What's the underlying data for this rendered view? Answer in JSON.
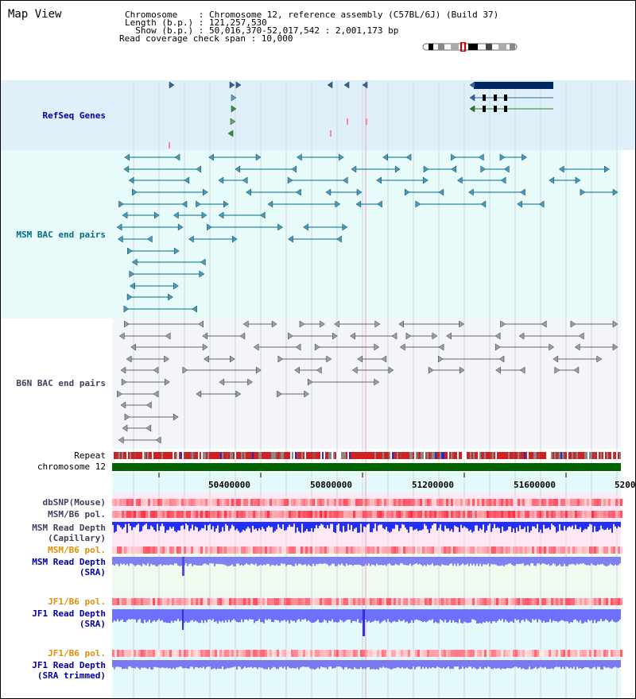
{
  "title": "Map View",
  "header": {
    "line1": "Chromosome    : Chromosome 12, reference assembly (C57BL/6J) (Build 37)",
    "line2": "Length (b.p.) : 121,257,530",
    "line3": "  Show (b.p.) : 50,016,370-52,017,542 : 2,001,173 bp",
    "line4": "Read coverage check span : 10,000"
  },
  "tracks": {
    "refseq": "RefSeq Genes",
    "msm_bac": "MSM BAC end pairs",
    "b6n_bac": "B6N BAC end pairs",
    "repeat": "Repeat",
    "chromosome": "chromosome 12",
    "dbsnp": "dbSNP(Mouse)",
    "msm_b6_pol": "MSM/B6 pol.",
    "msm_depth_cap1": "MSM Read Depth",
    "msm_depth_cap2": "(Capillary)",
    "msm_b6_pol2": "MSM/B6 pol.",
    "msm_depth_sra1": "MSM Read Depth",
    "msm_depth_sra2": "(SRA)",
    "jf1_b6_pol": "JF1/B6 pol.",
    "jf1_depth_sra1": "JF1 Read Depth",
    "jf1_depth_sra2": "(SRA)",
    "jf1_b6_pol2": "JF1/B6 pol.",
    "jf1_trim1": "JF1 Read Depth",
    "jf1_trim2": "(SRA trimmed)"
  },
  "axis": {
    "ticks": [
      "50400000",
      "50800000",
      "51200000",
      "51600000",
      "5200"
    ]
  },
  "colors": {
    "refseq_bg": "#dff0fa",
    "msm_bg": "#e8fbfb",
    "b6n_bg": "#f4f5f8",
    "refseq_label": "#0000a0",
    "msm_label": "#006c84",
    "b6n_label": "#404060",
    "pol_label": "#e09000",
    "depth_label": "#0000a0",
    "chromosome": "#006400",
    "depth": "#2020ff",
    "depth_light": "#7070ff"
  }
}
